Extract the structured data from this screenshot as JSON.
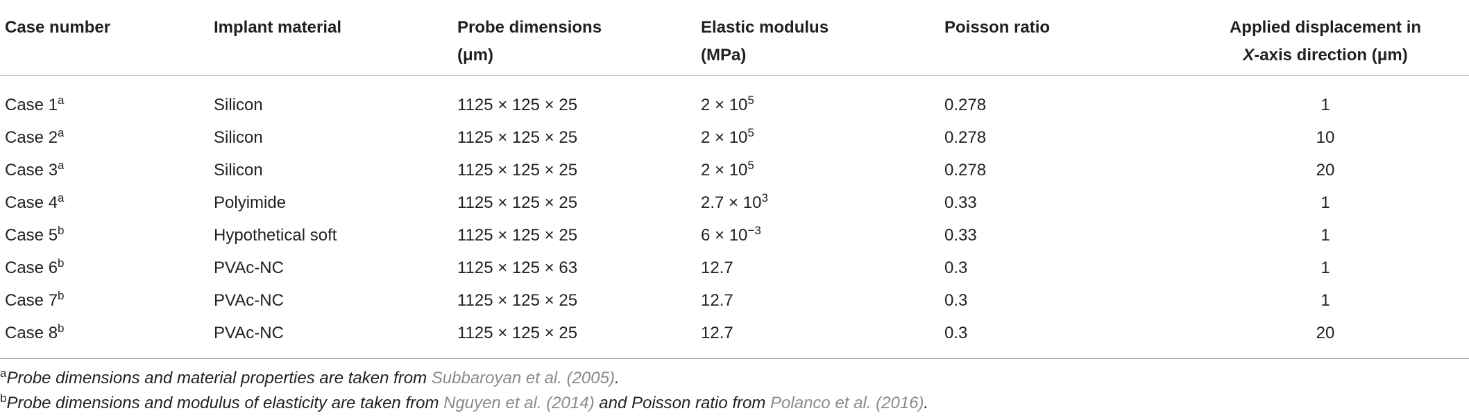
{
  "table": {
    "header": [
      {
        "lines": [
          "Case number"
        ]
      },
      {
        "lines": [
          "Implant material"
        ]
      },
      {
        "lines": [
          "Probe dimensions",
          "(μm)"
        ]
      },
      {
        "lines": [
          "Elastic modulus",
          "(MPa)"
        ]
      },
      {
        "lines": [
          "Poisson ratio"
        ]
      },
      {
        "lines": [
          "Applied displacement in"
        ],
        "italic": "X",
        "rest": "-axis direction (μm)"
      }
    ],
    "rows": [
      [
        {
          "text": "Case 1",
          "sup": "a"
        },
        "Silicon",
        "1125 × 125 × 25",
        {
          "text": "2 × 10",
          "sup": "5"
        },
        "0.278",
        "1"
      ],
      [
        {
          "text": "Case 2",
          "sup": "a"
        },
        "Silicon",
        "1125 × 125 × 25",
        {
          "text": "2 × 10",
          "sup": "5"
        },
        "0.278",
        "10"
      ],
      [
        {
          "text": "Case 3",
          "sup": "a"
        },
        "Silicon",
        "1125 × 125 × 25",
        {
          "text": "2 × 10",
          "sup": "5"
        },
        "0.278",
        "20"
      ],
      [
        {
          "text": "Case 4",
          "sup": "a"
        },
        "Polyimide",
        "1125 × 125 × 25",
        {
          "text": "2.7 × 10",
          "sup": "3"
        },
        "0.33",
        "1"
      ],
      [
        {
          "text": "Case 5",
          "sup": "b"
        },
        "Hypothetical soft",
        "1125 × 125 × 25",
        {
          "text": "6 × 10",
          "sup": "−3"
        },
        "0.33",
        "1"
      ],
      [
        {
          "text": "Case 6",
          "sup": "b"
        },
        "PVAc-NC",
        "1125 × 125 × 63",
        "12.7",
        "0.3",
        "1"
      ],
      [
        {
          "text": "Case 7",
          "sup": "b"
        },
        "PVAc-NC",
        "1125 × 125 × 25",
        "12.7",
        "0.3",
        "1"
      ],
      [
        {
          "text": "Case 8",
          "sup": "b"
        },
        "PVAc-NC",
        "1125 × 125 × 25",
        "12.7",
        "0.3",
        "20"
      ]
    ]
  },
  "footnotes": [
    {
      "mark": "a",
      "parts": [
        {
          "text": "Probe dimensions and material properties are taken from "
        },
        {
          "text": "Subbaroyan et al. (2005)",
          "cite": true
        },
        {
          "text": "."
        }
      ]
    },
    {
      "mark": "b",
      "parts": [
        {
          "text": "Probe dimensions and modulus of elasticity are taken from "
        },
        {
          "text": "Nguyen et al. (2014)",
          "cite": true
        },
        {
          "text": " and Poisson ratio from "
        },
        {
          "text": "Polanco et al. (2016)",
          "cite": true
        },
        {
          "text": "."
        }
      ]
    }
  ]
}
